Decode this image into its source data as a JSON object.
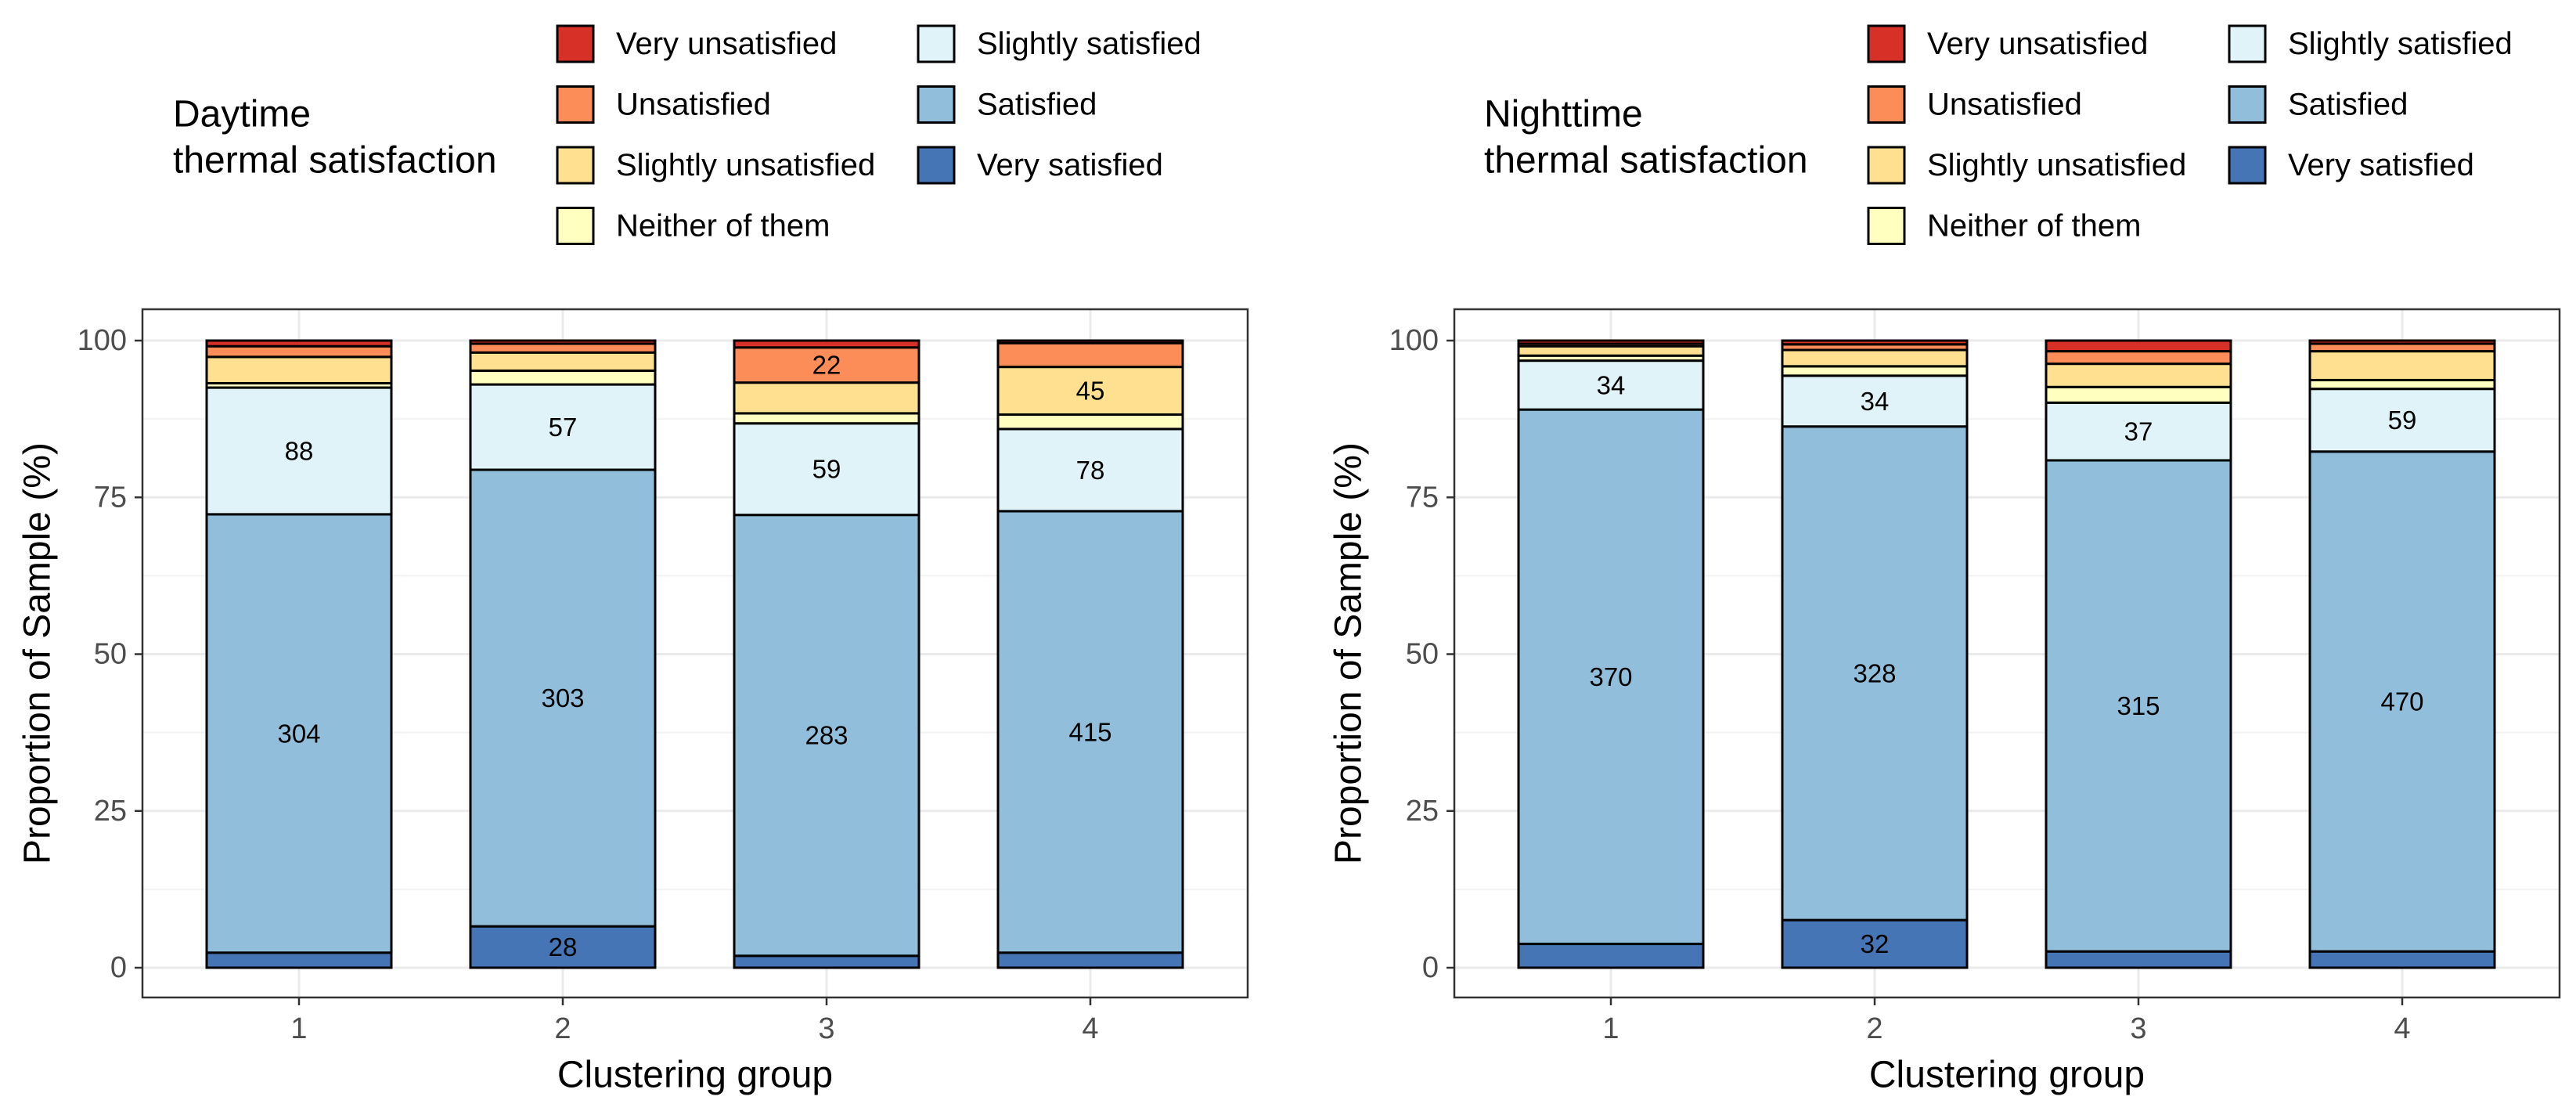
{
  "chart_data": [
    {
      "type": "bar",
      "stacked": true,
      "legend_title_lines": [
        "Daytime",
        "thermal satisfaction"
      ],
      "xlabel": "Clustering group",
      "ylabel": "Proportion of Sample (%)",
      "ylim": [
        0,
        100
      ],
      "yticks": [
        "0",
        "25",
        "50",
        "75",
        "100"
      ],
      "categories": [
        "1",
        "2",
        "3",
        "4"
      ],
      "series": [
        {
          "name": "Very satisfied",
          "color": "#4575b4",
          "values": [
            2.4,
            6.6,
            1.9,
            2.4
          ],
          "labels": [
            "",
            "28",
            "",
            ""
          ]
        },
        {
          "name": "Satisfied",
          "color": "#91bfdb",
          "values": [
            69.9,
            72.8,
            70.3,
            70.4
          ],
          "labels": [
            "304",
            "303",
            "283",
            "415"
          ]
        },
        {
          "name": "Slightly satisfied",
          "color": "#e0f3f8",
          "values": [
            20.2,
            13.6,
            14.6,
            13.1
          ],
          "labels": [
            "88",
            "57",
            "59",
            "78"
          ]
        },
        {
          "name": "Neither of them",
          "color": "#ffffbf",
          "values": [
            0.7,
            2.2,
            1.6,
            2.3
          ],
          "labels": [
            "",
            "",
            "",
            ""
          ]
        },
        {
          "name": "Slightly unsatisfied",
          "color": "#fee090",
          "values": [
            4.2,
            2.9,
            4.9,
            7.6
          ],
          "labels": [
            "",
            "",
            "",
            "45"
          ]
        },
        {
          "name": "Unsatisfied",
          "color": "#fc8d59",
          "values": [
            1.7,
            1.4,
            5.6,
            3.8
          ],
          "labels": [
            "",
            "",
            "22",
            ""
          ]
        },
        {
          "name": "Very unsatisfied",
          "color": "#d73027",
          "values": [
            0.9,
            0.5,
            1.1,
            0.4
          ],
          "labels": [
            "",
            "",
            "",
            ""
          ]
        }
      ]
    },
    {
      "type": "bar",
      "stacked": true,
      "legend_title_lines": [
        "Nighttime",
        "thermal satisfaction"
      ],
      "xlabel": "Clustering group",
      "ylabel": "Proportion of Sample (%)",
      "ylim": [
        0,
        100
      ],
      "yticks": [
        "0",
        "25",
        "50",
        "75",
        "100"
      ],
      "categories": [
        "1",
        "2",
        "3",
        "4"
      ],
      "series": [
        {
          "name": "Very satisfied",
          "color": "#4575b4",
          "values": [
            3.8,
            7.6,
            2.6,
            2.6
          ],
          "labels": [
            "",
            "32",
            "",
            ""
          ]
        },
        {
          "name": "Satisfied",
          "color": "#91bfdb",
          "values": [
            85.2,
            78.7,
            78.3,
            79.7
          ],
          "labels": [
            "370",
            "328",
            "315",
            "470"
          ]
        },
        {
          "name": "Slightly satisfied",
          "color": "#e0f3f8",
          "values": [
            7.8,
            8.1,
            9.2,
            10.0
          ],
          "labels": [
            "34",
            "34",
            "37",
            "59"
          ]
        },
        {
          "name": "Neither of them",
          "color": "#ffffbf",
          "values": [
            0.8,
            1.5,
            2.5,
            1.4
          ],
          "labels": [
            "",
            "",
            "",
            ""
          ]
        },
        {
          "name": "Slightly unsatisfied",
          "color": "#fee090",
          "values": [
            1.5,
            2.6,
            3.7,
            4.6
          ],
          "labels": [
            "",
            "",
            "",
            ""
          ]
        },
        {
          "name": "Unsatisfied",
          "color": "#fc8d59",
          "values": [
            0.4,
            0.9,
            2.0,
            1.2
          ],
          "labels": [
            "",
            "",
            "",
            ""
          ]
        },
        {
          "name": "Very unsatisfied",
          "color": "#d73027",
          "values": [
            0.5,
            0.6,
            1.7,
            0.5
          ],
          "labels": [
            "",
            "",
            "",
            ""
          ]
        }
      ]
    }
  ]
}
